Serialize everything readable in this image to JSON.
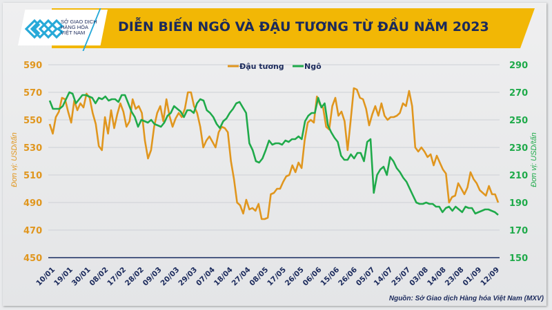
{
  "header": {
    "logo_text": [
      "SỞ GIAO DỊCH",
      "HÀNG HÓA",
      "VIỆT NAM"
    ],
    "title": "DIỄN BIẾN NGÔ VÀ ĐẬU TƯƠNG TỪ ĐẦU NĂM 2023"
  },
  "footer": {
    "source": "Nguồn: Sở Giao dịch Hàng hóa Việt Nam (MXV)"
  },
  "colors": {
    "soy": "#e0961e",
    "corn": "#1faa4a",
    "title": "#1b2a5c",
    "banner": "#f2b705",
    "axis": "#4a5a82",
    "grid": "#d3d5da"
  },
  "chart_data": {
    "type": "line",
    "title": "DIỄN BIẾN NGÔ VÀ ĐẬU TƯƠNG TỪ ĐẦU NĂM 2023",
    "xlabel": "",
    "ylabel_left": "Đơn vị: USD/tấn",
    "ylabel_right": "Đơn vị: USD/tấn",
    "ylim_left": [
      450,
      590
    ],
    "ylim_right": [
      150,
      290
    ],
    "yticks_left": [
      450,
      470,
      490,
      510,
      530,
      550,
      570,
      590
    ],
    "yticks_right": [
      150,
      170,
      190,
      210,
      230,
      250,
      270,
      290
    ],
    "grid": true,
    "legend_position": "top-center",
    "categories": [
      "10/01",
      "19/01",
      "30/01",
      "08/02",
      "17/02",
      "28/02",
      "09/03",
      "20/03",
      "29/03",
      "07/04",
      "18/04",
      "27/04",
      "08/05",
      "17/05",
      "26/05",
      "06/06",
      "15/06",
      "26/06",
      "05/07",
      "14/07",
      "25/07",
      "03/08",
      "14/08",
      "23/08",
      "01/09",
      "12/09"
    ],
    "series": [
      {
        "name": "Đậu tương",
        "axis": "left",
        "values": [
          547,
          540,
          552,
          556,
          566,
          565,
          556,
          548,
          564,
          557,
          562,
          559,
          569,
          566,
          555,
          547,
          531,
          528,
          552,
          540,
          557,
          544,
          554,
          562,
          556,
          545,
          549,
          565,
          558,
          560,
          555,
          535,
          522,
          528,
          545,
          555,
          560,
          549,
          565,
          553,
          545,
          551,
          555,
          552,
          558,
          570,
          570,
          560,
          555,
          545,
          530,
          535,
          538,
          534,
          530,
          541,
          545,
          544,
          541,
          520,
          507,
          490,
          488,
          482,
          492,
          485,
          486,
          484,
          489,
          478,
          478,
          479,
          496,
          497,
          500,
          500,
          505,
          509,
          510,
          517,
          512,
          519,
          515,
          535,
          548,
          550,
          548,
          567,
          561,
          559,
          545,
          543,
          560,
          566,
          553,
          556,
          549,
          528,
          550,
          573,
          572,
          566,
          565,
          558,
          546,
          554,
          560,
          553,
          562,
          553,
          550,
          552,
          552,
          553,
          555,
          562,
          560,
          571,
          560,
          530,
          527,
          530,
          527,
          523,
          525,
          517,
          524,
          519,
          514,
          511,
          490,
          494,
          495,
          504,
          500,
          496,
          501,
          512,
          507,
          504,
          499,
          497,
          495,
          502,
          496,
          496,
          490
        ]
      },
      {
        "name": "Ngô",
        "axis": "right",
        "values": [
          264,
          258,
          258,
          258,
          260,
          265,
          270,
          269,
          262,
          265,
          268,
          268,
          267,
          266,
          262,
          266,
          265,
          267,
          264,
          265,
          265,
          263,
          268,
          268,
          262,
          256,
          252,
          245,
          250,
          249,
          248,
          250,
          247,
          246,
          245,
          248,
          253,
          255,
          260,
          258,
          256,
          252,
          257,
          257,
          255,
          262,
          265,
          264,
          257,
          255,
          252,
          247,
          244,
          249,
          251,
          255,
          258,
          262,
          263,
          259,
          255,
          233,
          228,
          220,
          219,
          222,
          228,
          235,
          232,
          233,
          233,
          232,
          235,
          234,
          236,
          236,
          238,
          236,
          249,
          253,
          255,
          255,
          266,
          259,
          262,
          246,
          241,
          237,
          234,
          224,
          221,
          221,
          225,
          222,
          226,
          226,
          220,
          234,
          236,
          197,
          210,
          214,
          216,
          210,
          223,
          220,
          215,
          212,
          208,
          205,
          200,
          195,
          190,
          189,
          189,
          190,
          189,
          189,
          187,
          187,
          183,
          186,
          187,
          184,
          187,
          185,
          183,
          187,
          186,
          186,
          182,
          183,
          184,
          185,
          185,
          184,
          183,
          181
        ]
      }
    ]
  }
}
